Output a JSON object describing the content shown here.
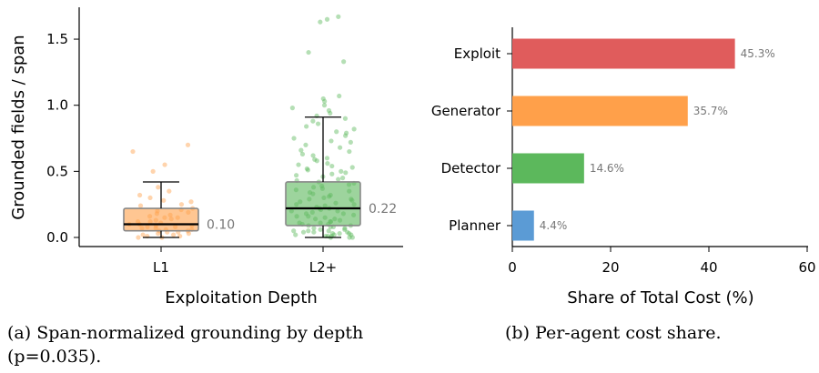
{
  "captions": {
    "a_line1": "(a) Span-normalized grounding by depth",
    "a_line2": "(p=0.035).",
    "b": "(b) Per-agent cost share."
  },
  "chart_data": [
    {
      "type": "box",
      "xlabel": "Exploitation Depth",
      "ylabel": "Grounded fields / span",
      "ylim": [
        -0.06,
        1.75
      ],
      "yticks": [
        0.0,
        0.5,
        1.0,
        1.5
      ],
      "ytick_labels": [
        "0.0",
        "0.5",
        "1.0",
        "1.5"
      ],
      "grid": false,
      "series": [
        {
          "category": "L1",
          "color": "#ffa04a",
          "whisker_low": 0.0,
          "q1": 0.05,
          "median": 0.1,
          "q3": 0.22,
          "whisker_high": 0.42,
          "median_label": "0.10",
          "points": [
            0.7,
            0.65,
            0.55,
            0.5,
            0.38,
            0.35,
            0.32,
            0.3,
            0.28,
            0.27,
            0.25,
            0.24,
            0.22,
            0.21,
            0.2,
            0.19,
            0.18,
            0.17,
            0.16,
            0.15,
            0.15,
            0.14,
            0.13,
            0.12,
            0.12,
            0.11,
            0.1,
            0.1,
            0.09,
            0.09,
            0.08,
            0.08,
            0.07,
            0.07,
            0.06,
            0.06,
            0.05,
            0.05,
            0.04,
            0.04,
            0.03,
            0.03,
            0.02,
            0.02,
            0.01,
            0.01,
            0.0,
            0.0
          ]
        },
        {
          "category": "L2+",
          "color": "#5cb85c",
          "whisker_low": 0.0,
          "q1": 0.09,
          "median": 0.22,
          "q3": 0.42,
          "whisker_high": 0.91,
          "median_label": "0.22",
          "points": [
            1.67,
            1.65,
            1.63,
            1.4,
            1.33,
            1.07,
            1.05,
            1.03,
            1.0,
            0.98,
            0.96,
            0.94,
            0.92,
            0.9,
            0.88,
            0.86,
            0.84,
            0.82,
            0.8,
            0.79,
            0.77,
            0.75,
            0.73,
            0.72,
            0.7,
            0.68,
            0.66,
            0.65,
            0.63,
            0.62,
            0.6,
            0.59,
            0.58,
            0.56,
            0.55,
            0.54,
            0.53,
            0.52,
            0.51,
            0.5,
            0.49,
            0.48,
            0.47,
            0.46,
            0.45,
            0.44,
            0.43,
            0.42,
            0.41,
            0.4,
            0.39,
            0.38,
            0.37,
            0.36,
            0.35,
            0.34,
            0.33,
            0.32,
            0.31,
            0.3,
            0.29,
            0.29,
            0.28,
            0.27,
            0.26,
            0.25,
            0.25,
            0.24,
            0.23,
            0.22,
            0.22,
            0.21,
            0.2,
            0.2,
            0.19,
            0.18,
            0.18,
            0.17,
            0.16,
            0.16,
            0.15,
            0.14,
            0.14,
            0.13,
            0.12,
            0.12,
            0.11,
            0.11,
            0.1,
            0.1,
            0.09,
            0.09,
            0.08,
            0.08,
            0.07,
            0.07,
            0.06,
            0.06,
            0.05,
            0.05,
            0.05,
            0.04,
            0.04,
            0.04,
            0.03,
            0.03,
            0.03,
            0.02,
            0.02,
            0.02,
            0.01,
            0.01,
            0.01,
            0.0,
            0.0,
            0.0
          ]
        }
      ]
    },
    {
      "type": "bar",
      "orientation": "horizontal",
      "categories": [
        "Exploit",
        "Generator",
        "Detector",
        "Planner"
      ],
      "values": [
        45.3,
        35.7,
        14.6,
        4.4
      ],
      "value_labels": [
        "45.3%",
        "35.7%",
        "14.6%",
        "4.4%"
      ],
      "colors": [
        "#e05c5c",
        "#ffa04a",
        "#5cb85c",
        "#5b9bd5"
      ],
      "xlabel": "Share of Total Cost (%)",
      "ylabel": "",
      "xlim": [
        0,
        60
      ],
      "xticks": [
        0,
        20,
        40,
        60
      ],
      "xtick_labels": [
        "0",
        "20",
        "40",
        "60"
      ],
      "grid": false
    }
  ]
}
